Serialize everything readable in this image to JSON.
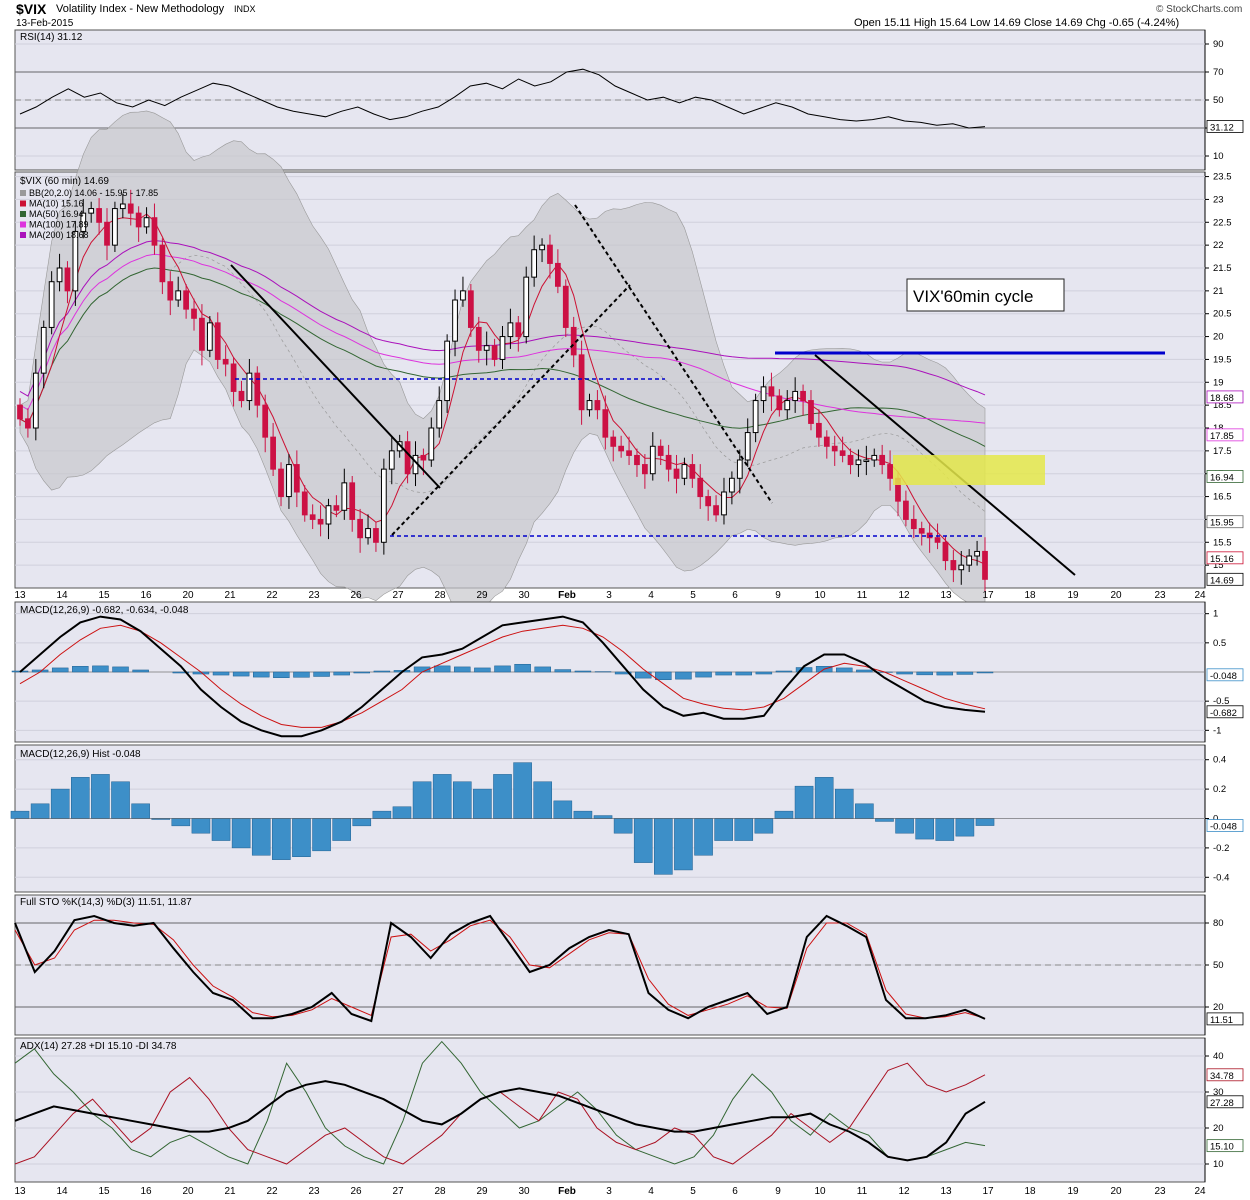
{
  "header": {
    "symbol": "$VIX",
    "name": "Volatility Index - New Methodology",
    "exchange": "INDX",
    "date": "13-Feb-2015",
    "ohlc": "Open 15.11  High 15.64  Low 14.69  Close 14.69  Chg -0.65 (-4.24%)",
    "watermark": "© StockCharts.com"
  },
  "colors": {
    "panel_bg": "#e6e6f0",
    "band": "#c8c8cc",
    "candle_up": "#000000",
    "candle_down": "#cc1144",
    "ma10": "#cc1133",
    "ma50": "#336633",
    "ma100": "#dd33dd",
    "ma200": "#aa11bb",
    "blue": "#0000cc",
    "hist": "#3d8fc8",
    "highlight": "#e4e84a"
  },
  "annotations": {
    "cycle_label": "VIX'60min cycle"
  },
  "chart_data": [
    {
      "type": "line",
      "title": "RSI(14) 31.12",
      "y_ticks": [
        90,
        70,
        50,
        30,
        10
      ],
      "ylim": [
        0,
        100
      ],
      "last_value": "31.12",
      "values": [
        40,
        45,
        52,
        58,
        52,
        55,
        48,
        45,
        50,
        46,
        52,
        57,
        62,
        60,
        55,
        50,
        45,
        42,
        40,
        38,
        42,
        45,
        40,
        36,
        38,
        42,
        45,
        52,
        60,
        62,
        58,
        65,
        60,
        63,
        70,
        72,
        68,
        60,
        55,
        50,
        52,
        48,
        52,
        50,
        45,
        40,
        44,
        48,
        45,
        40,
        38,
        36,
        35,
        36,
        38,
        35,
        34,
        32,
        33,
        30,
        31
      ]
    },
    {
      "type": "candlestick",
      "title": "$VIX (60 min) 14.69",
      "legend": [
        {
          "label": "BB(20,2.0) 14.06 - 15.95 - 17.85",
          "color": "#999999"
        },
        {
          "label": "MA(10) 15.16",
          "color": "#cc1133"
        },
        {
          "label": "MA(50) 16.94",
          "color": "#336633"
        },
        {
          "label": "MA(100) 17.89",
          "color": "#dd33dd"
        },
        {
          "label": "MA(200) 18.68",
          "color": "#aa11bb"
        }
      ],
      "y_ticks": [
        23.5,
        23.0,
        22.5,
        22.0,
        21.5,
        21.0,
        20.5,
        20.0,
        19.5,
        19.0,
        18.5,
        18.0,
        17.5,
        17.0,
        16.5,
        16.0,
        15.5,
        15.0
      ],
      "ylim": [
        14.5,
        23.6
      ],
      "price_labels": [
        {
          "value": 18.68,
          "text": "18.68"
        },
        {
          "value": 17.85,
          "text": "17.85"
        },
        {
          "value": 16.94,
          "text": "16.94"
        },
        {
          "value": 15.95,
          "text": "15.95"
        },
        {
          "value": 15.16,
          "text": "15.16"
        },
        {
          "value": 14.69,
          "text": "14.69"
        }
      ],
      "close": [
        18.2,
        18.0,
        19.2,
        20.2,
        21.2,
        21.5,
        21.0,
        22.3,
        22.7,
        22.8,
        22.5,
        22.0,
        22.8,
        22.9,
        22.7,
        22.4,
        22.6,
        22.0,
        21.2,
        20.8,
        21.0,
        20.6,
        20.4,
        19.7,
        20.3,
        19.5,
        19.4,
        18.8,
        18.6,
        19.2,
        18.5,
        17.8,
        17.1,
        16.5,
        17.2,
        16.6,
        16.1,
        16.0,
        15.9,
        16.3,
        16.2,
        16.8,
        16.0,
        15.6,
        15.8,
        15.5,
        17.1,
        17.5,
        17.7,
        17.0,
        17.4,
        17.3,
        18.0,
        18.6,
        19.9,
        20.8,
        21.0,
        20.2,
        19.7,
        19.8,
        19.5,
        20.0,
        20.3,
        20.0,
        21.3,
        21.9,
        22.0,
        21.6,
        21.1,
        20.2,
        19.6,
        18.4,
        18.6,
        18.4,
        17.8,
        17.6,
        17.5,
        17.4,
        17.2,
        17.0,
        17.6,
        17.4,
        17.1,
        16.9,
        17.2,
        16.9,
        16.5,
        16.3,
        16.1,
        16.6,
        16.9,
        17.3,
        17.9,
        18.6,
        18.9,
        18.7,
        18.4,
        18.6,
        18.8,
        18.6,
        18.1,
        17.8,
        17.6,
        17.5,
        17.4,
        17.2,
        17.3,
        17.3,
        17.4,
        17.2,
        16.9,
        16.4,
        16.0,
        15.8,
        15.7,
        15.6,
        15.5,
        15.1,
        14.9,
        15.0,
        15.2,
        15.3,
        14.69
      ],
      "x_ticks": [
        "13",
        "14",
        "15",
        "16",
        "20",
        "21",
        "22",
        "23",
        "26",
        "27",
        "28",
        "29",
        "30",
        "Feb",
        "3",
        "4",
        "5",
        "6",
        "9",
        "10",
        "11",
        "12",
        "13",
        "17",
        "18",
        "19",
        "20",
        "23",
        "24"
      ]
    },
    {
      "type": "line",
      "title": "MACD(12,26,9) -0.682, -0.634, -0.048",
      "y_ticks": [
        1.0,
        0.5,
        -0.5,
        -1.0
      ],
      "ylim": [
        -1.2,
        1.2
      ],
      "labels": [
        "-0.048",
        "-0.682"
      ],
      "macd": [
        0.0,
        0.3,
        0.6,
        0.85,
        0.95,
        0.9,
        0.7,
        0.4,
        0.1,
        -0.3,
        -0.6,
        -0.85,
        -1.0,
        -1.1,
        -1.1,
        -1.0,
        -0.85,
        -0.6,
        -0.3,
        0.0,
        0.25,
        0.3,
        0.4,
        0.6,
        0.8,
        0.85,
        0.9,
        0.95,
        0.85,
        0.5,
        0.1,
        -0.3,
        -0.6,
        -0.75,
        -0.7,
        -0.8,
        -0.8,
        -0.75,
        -0.3,
        0.1,
        0.3,
        0.3,
        0.15,
        -0.1,
        -0.3,
        -0.5,
        -0.6,
        -0.65,
        -0.68
      ],
      "signal": [
        -0.2,
        0.0,
        0.3,
        0.55,
        0.75,
        0.8,
        0.7,
        0.5,
        0.25,
        0.0,
        -0.3,
        -0.55,
        -0.75,
        -0.9,
        -0.95,
        -0.95,
        -0.85,
        -0.7,
        -0.5,
        -0.3,
        0.0,
        0.15,
        0.3,
        0.45,
        0.6,
        0.7,
        0.75,
        0.8,
        0.75,
        0.6,
        0.35,
        0.05,
        -0.2,
        -0.45,
        -0.55,
        -0.62,
        -0.65,
        -0.6,
        -0.45,
        -0.2,
        0.05,
        0.15,
        0.1,
        0.0,
        -0.15,
        -0.3,
        -0.45,
        -0.55,
        -0.63
      ]
    },
    {
      "type": "bar",
      "title": "MACD(12,26,9) Hist -0.048",
      "y_ticks": [
        0.4,
        0.2,
        0.0,
        -0.2,
        -0.4
      ],
      "ylim": [
        -0.5,
        0.5
      ],
      "last_value": "-0.048",
      "values": [
        0.05,
        0.1,
        0.2,
        0.28,
        0.3,
        0.25,
        0.1,
        0.0,
        -0.05,
        -0.1,
        -0.15,
        -0.2,
        -0.25,
        -0.28,
        -0.26,
        -0.22,
        -0.15,
        -0.05,
        0.05,
        0.08,
        0.25,
        0.3,
        0.25,
        0.2,
        0.3,
        0.38,
        0.25,
        0.12,
        0.05,
        0.02,
        -0.1,
        -0.3,
        -0.38,
        -0.35,
        -0.25,
        -0.15,
        -0.15,
        -0.1,
        0.05,
        0.22,
        0.28,
        0.2,
        0.1,
        -0.02,
        -0.1,
        -0.14,
        -0.15,
        -0.12,
        -0.048
      ]
    },
    {
      "type": "line",
      "title": "Full STO %K(14,3) %D(3) 11.51, 11.87",
      "y_ticks": [
        80,
        50,
        20
      ],
      "ylim": [
        0,
        100
      ],
      "labels": [
        "11.51"
      ],
      "k": [
        80,
        45,
        60,
        82,
        85,
        80,
        78,
        80,
        62,
        45,
        30,
        25,
        12,
        12,
        15,
        20,
        30,
        15,
        10,
        80,
        70,
        55,
        72,
        80,
        85,
        65,
        45,
        50,
        62,
        70,
        75,
        72,
        30,
        18,
        12,
        20,
        25,
        30,
        15,
        20,
        70,
        85,
        78,
        70,
        25,
        12,
        12,
        14,
        18,
        11.5
      ],
      "d": [
        75,
        50,
        55,
        75,
        82,
        82,
        80,
        79,
        68,
        50,
        35,
        27,
        16,
        13,
        14,
        18,
        26,
        20,
        14,
        70,
        72,
        60,
        68,
        78,
        82,
        70,
        50,
        48,
        58,
        68,
        73,
        72,
        40,
        22,
        14,
        18,
        22,
        28,
        20,
        19,
        62,
        80,
        80,
        72,
        32,
        15,
        12,
        13,
        16,
        11.9
      ]
    },
    {
      "type": "line",
      "title": "ADX(14) 27.28 +DI 15.10 -DI 34.78",
      "y_ticks": [
        40,
        30,
        20,
        10
      ],
      "ylim": [
        5,
        45
      ],
      "labels": [
        "34.78",
        "27.28",
        "15.10"
      ],
      "adx": [
        22,
        24,
        26,
        25,
        24,
        23,
        22,
        21,
        20,
        19,
        19,
        20,
        22,
        26,
        30,
        32,
        33,
        32,
        30,
        28,
        25,
        22,
        21,
        24,
        28,
        30,
        31,
        30,
        29,
        27,
        25,
        23,
        21,
        20,
        19,
        19,
        20,
        21,
        22,
        23,
        23,
        24,
        21,
        19,
        16,
        12,
        11,
        12,
        16,
        24,
        27.28
      ],
      "plus_di": [
        38,
        42,
        35,
        30,
        24,
        20,
        14,
        12,
        16,
        18,
        15,
        12,
        10,
        22,
        38,
        30,
        20,
        15,
        12,
        10,
        22,
        38,
        44,
        38,
        30,
        25,
        20,
        22,
        26,
        30,
        25,
        18,
        14,
        12,
        10,
        12,
        18,
        28,
        35,
        30,
        22,
        18,
        24,
        20,
        18,
        12,
        11,
        12,
        14,
        16,
        15.1
      ],
      "minus_di": [
        10,
        12,
        18,
        24,
        28,
        22,
        16,
        20,
        30,
        34,
        28,
        20,
        14,
        12,
        10,
        14,
        18,
        20,
        16,
        12,
        10,
        14,
        18,
        24,
        28,
        30,
        26,
        22,
        30,
        28,
        20,
        16,
        14,
        16,
        20,
        18,
        12,
        10,
        14,
        18,
        24,
        20,
        16,
        20,
        28,
        36,
        38,
        32,
        30,
        32,
        34.78
      ]
    }
  ]
}
